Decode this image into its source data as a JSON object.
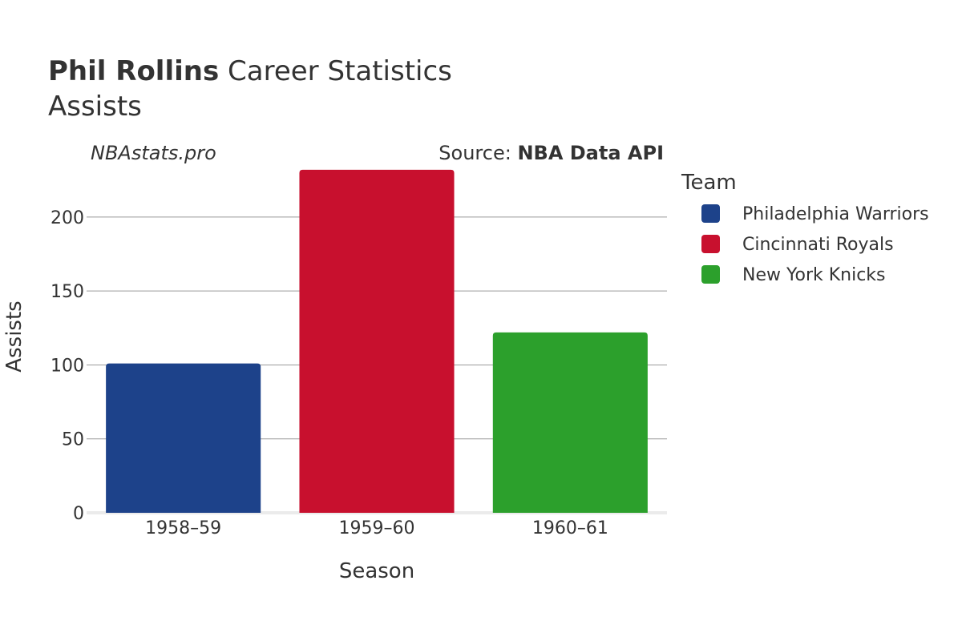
{
  "header": {
    "title_name": "Phil Rollins",
    "title_rest": " Career Statistics",
    "subtitle": "Assists",
    "watermark": "NBAstats.pro",
    "source_prefix": "Source: ",
    "source_name": "NBA Data API"
  },
  "legend": {
    "title": "Team"
  },
  "chart_data": {
    "type": "bar",
    "title": "Phil Rollins Career Statistics",
    "subtitle": "Assists",
    "xlabel": "Season",
    "ylabel": "Assists",
    "categories": [
      "1958–59",
      "1959–60",
      "1960–61"
    ],
    "ylim": [
      0,
      233
    ],
    "yticks": [
      0,
      50,
      100,
      150,
      200
    ],
    "grid": true,
    "legend_position": "right",
    "series": [
      {
        "name": "Philadelphia Warriors",
        "category": "1958–59",
        "value": 101,
        "color": "#1d428a"
      },
      {
        "name": "Cincinnati Royals",
        "category": "1959–60",
        "value": 232,
        "color": "#c8102e"
      },
      {
        "name": "New York Knicks",
        "category": "1960–61",
        "value": 122,
        "color": "#2ca02c"
      }
    ]
  }
}
